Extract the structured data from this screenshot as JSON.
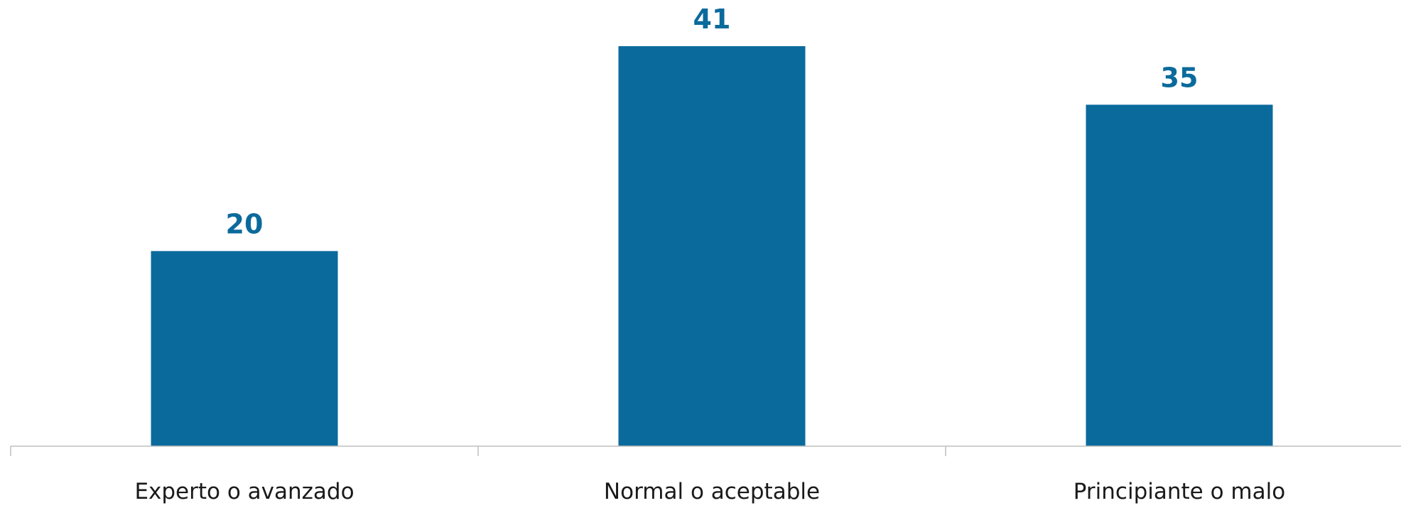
{
  "colors": {
    "bar": "#0b6a9c",
    "value_label": "#0b6a9c",
    "axis": "#bfbfbf",
    "category_label": "#1a1a1a",
    "background": "#ffffff"
  },
  "chart_data": {
    "type": "bar",
    "categories": [
      "Experto o avanzado",
      "Normal o aceptable",
      "Principiante o malo"
    ],
    "values": [
      20,
      41,
      35
    ],
    "data_labels": [
      "20",
      "41",
      "35"
    ],
    "title": "",
    "xlabel": "",
    "ylabel": "",
    "ylim": [
      0,
      41
    ],
    "grid": false,
    "legend": "none"
  }
}
